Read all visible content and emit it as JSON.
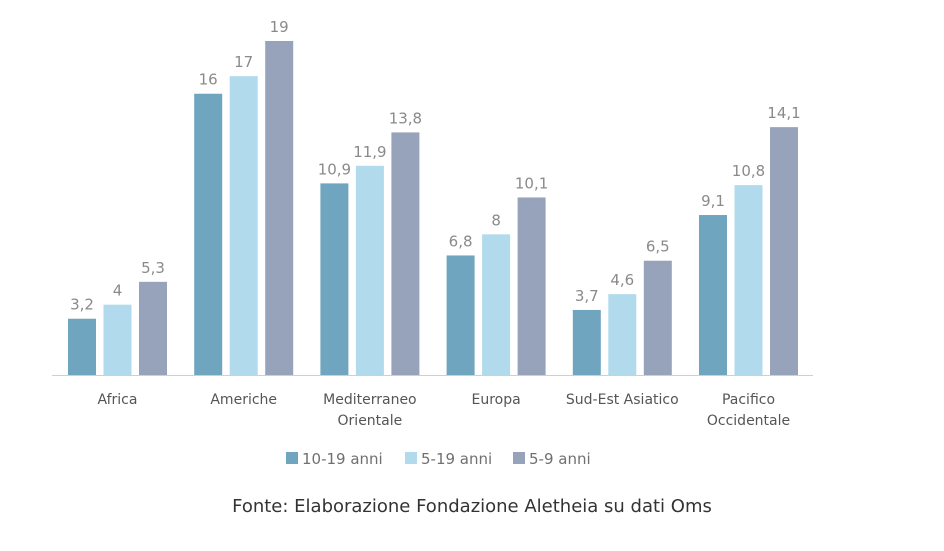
{
  "chart_data": {
    "type": "bar",
    "categories": [
      "Africa",
      "Americhe",
      "Mediterraneo\nOrientale",
      "Europa",
      "Sud-Est Asiatico",
      "Pacifico\nOccidentale"
    ],
    "series": [
      {
        "name": "10-19 anni",
        "color": "#6fa5bf",
        "values": [
          3.2,
          16,
          10.9,
          6.8,
          3.7,
          9.1
        ],
        "labels": [
          "3,2",
          "16",
          "10,9",
          "6,8",
          "3,7",
          "9,1"
        ]
      },
      {
        "name": "5-19 anni",
        "color": "#b1daec",
        "values": [
          4,
          17,
          11.9,
          8,
          4.6,
          10.8
        ],
        "labels": [
          "4",
          "17",
          "11,9",
          "8",
          "4,6",
          "10,8"
        ]
      },
      {
        "name": "5-9 anni",
        "color": "#97a3ba",
        "values": [
          5.3,
          19,
          13.8,
          10.1,
          6.5,
          14.1
        ],
        "labels": [
          "5,3",
          "19",
          "13,8",
          "10,1",
          "6,5",
          "14,1"
        ]
      }
    ],
    "ylim": [
      0,
      19
    ],
    "grid": false,
    "legend_position": "bottom"
  },
  "source": "Fonte: Elaborazione Fondazione Aletheia su dati Oms"
}
